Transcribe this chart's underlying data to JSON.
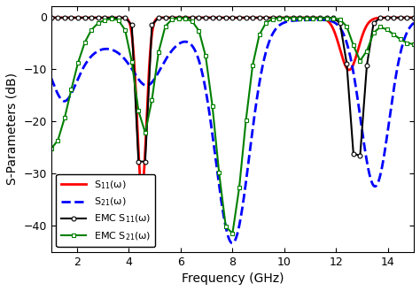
{
  "title": "",
  "xlabel": "Frequency (GHz)",
  "ylabel": "S-Parameters (dB)",
  "xlim": [
    1,
    15
  ],
  "ylim": [
    -45,
    2
  ],
  "yticks": [
    0,
    -10,
    -20,
    -30,
    -40
  ],
  "xticks": [
    2,
    4,
    6,
    8,
    10,
    12,
    14
  ],
  "background_color": "#ffffff",
  "legend": [
    {
      "label": "S$_{11}$(ω)",
      "color": "#ff0000",
      "linestyle": "-",
      "linewidth": 2.0,
      "marker": "none"
    },
    {
      "label": "S$_{21}$(ω)",
      "color": "#0000ff",
      "linestyle": "--",
      "linewidth": 2.0,
      "marker": "none"
    },
    {
      "label": "EMC S$_{11}$(ω)",
      "color": "#000000",
      "linestyle": "-",
      "linewidth": 1.5,
      "marker": "o"
    },
    {
      "label": "EMC S$_{21}$(ω)",
      "color": "#008000",
      "linestyle": "-",
      "linewidth": 1.5,
      "marker": "s"
    }
  ]
}
